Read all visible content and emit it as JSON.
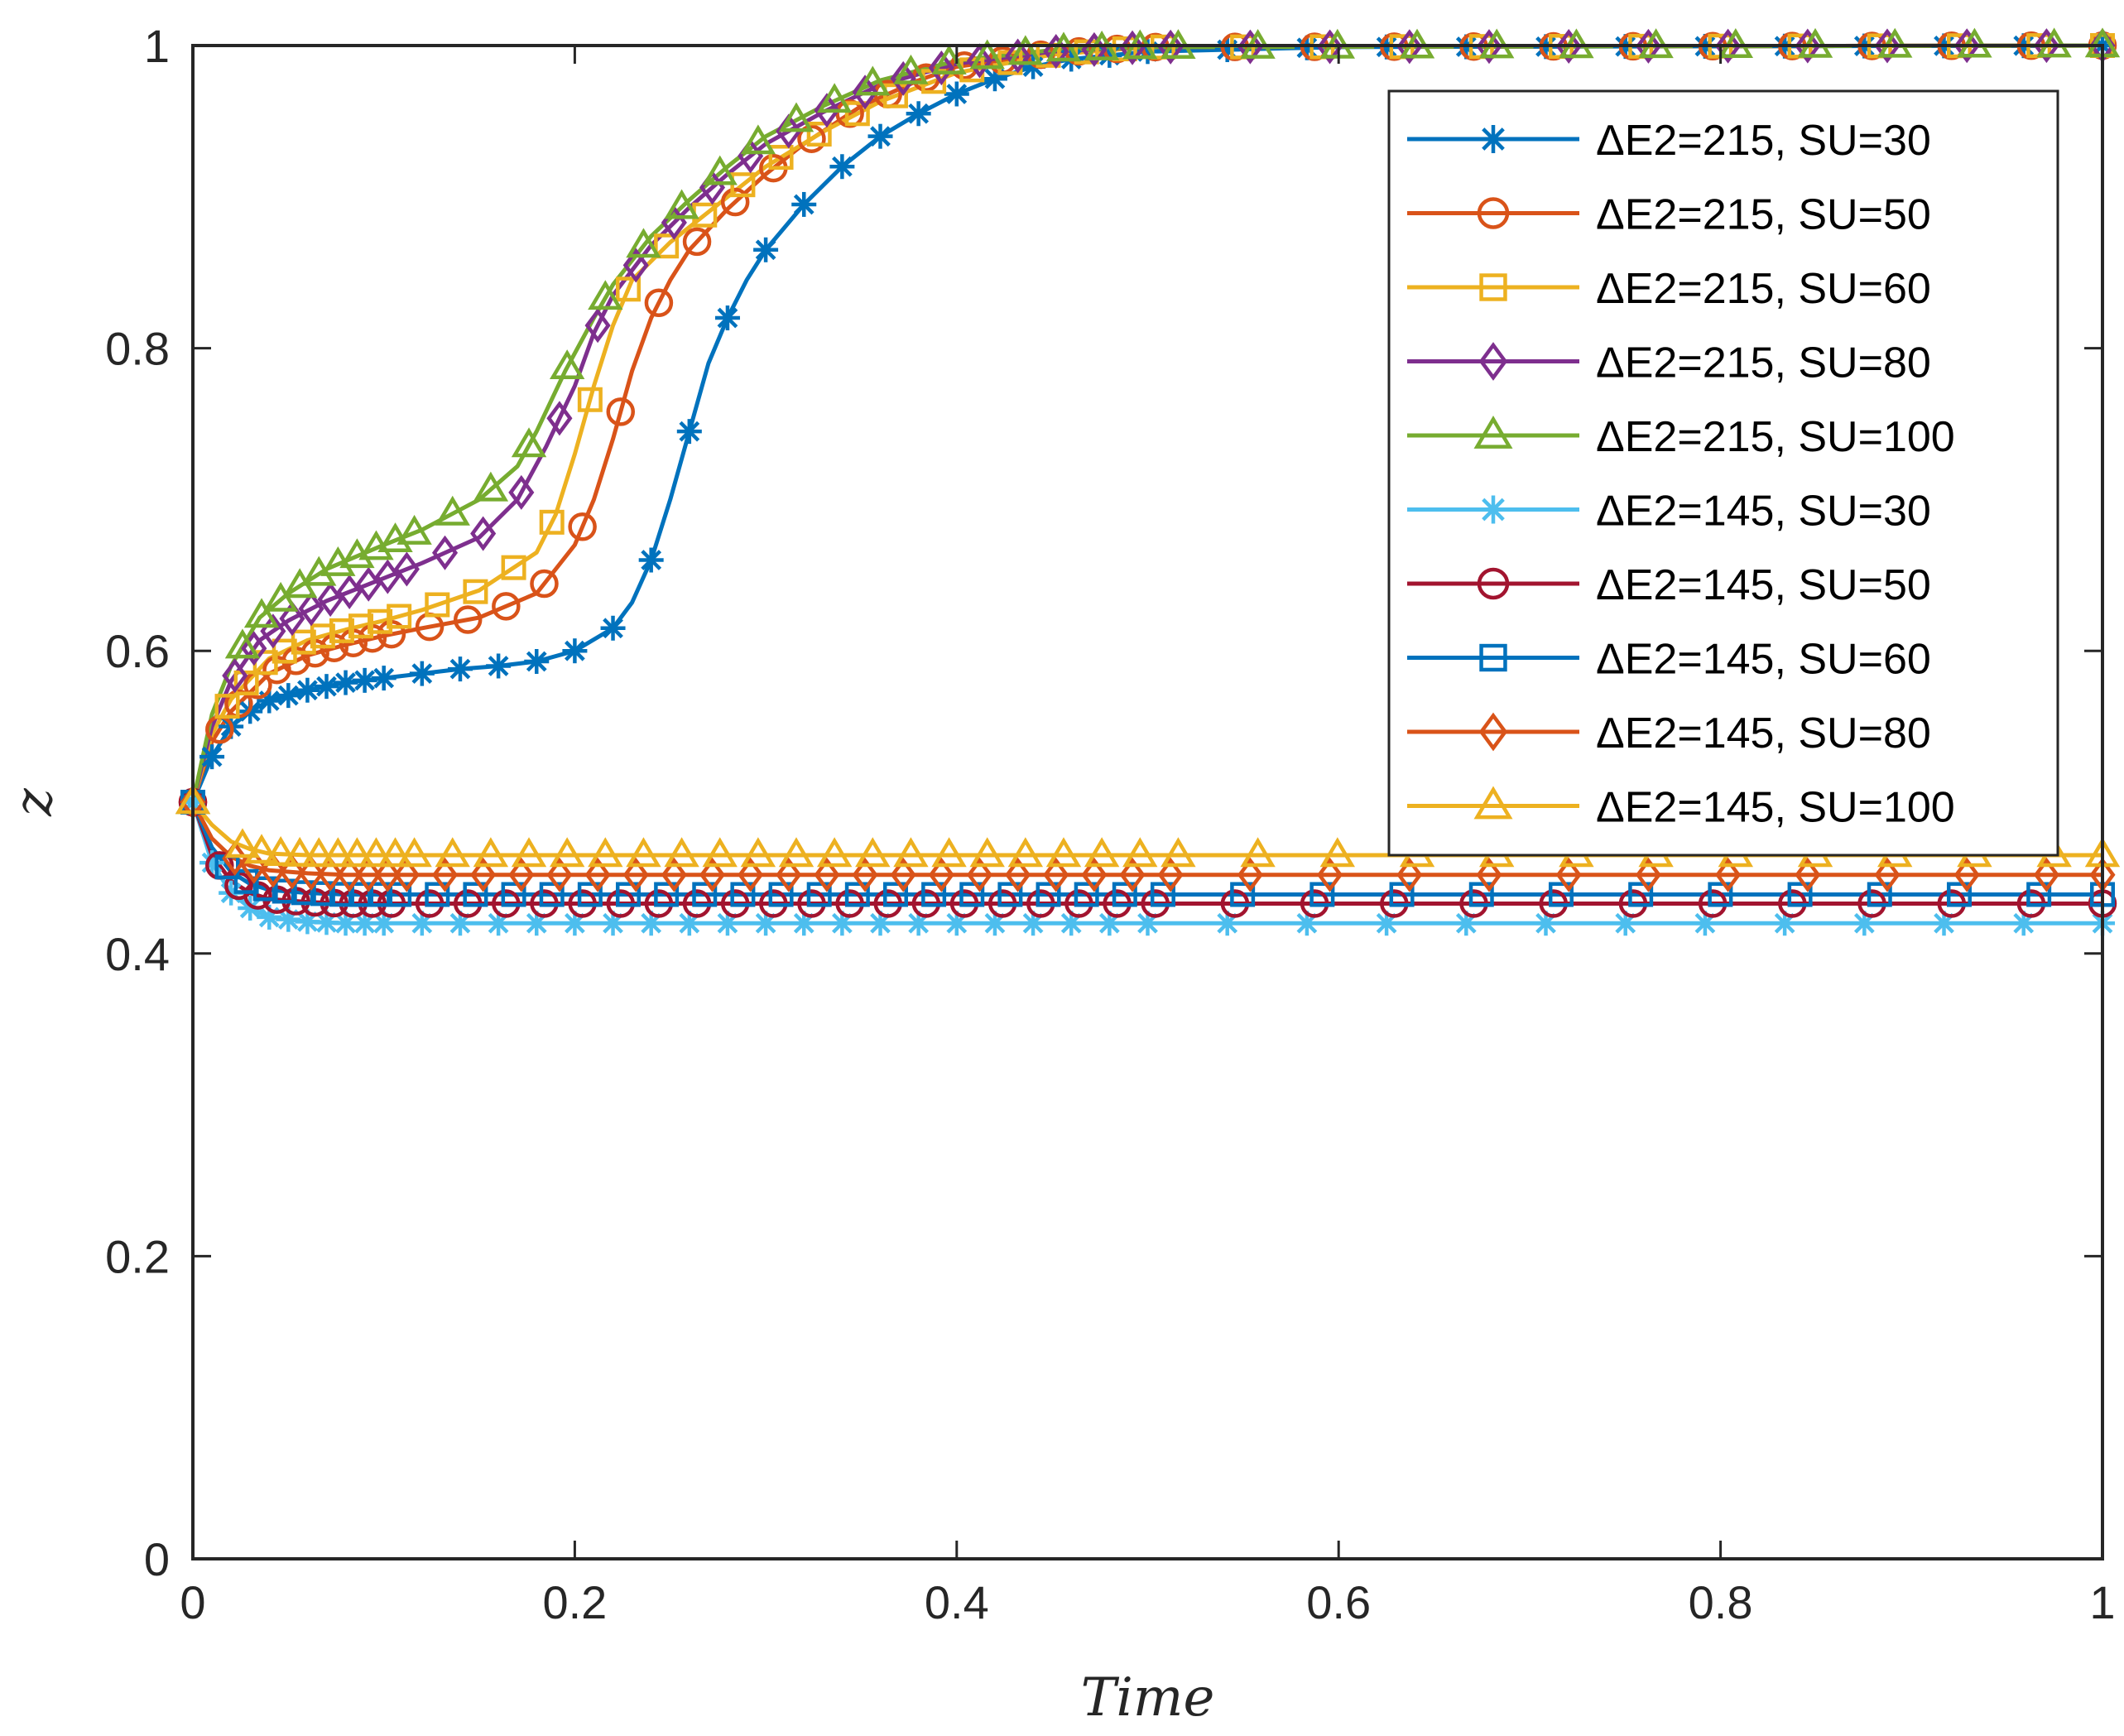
{
  "chart_data": {
    "type": "line",
    "title": "",
    "xlabel": "Time",
    "ylabel": "z",
    "xlim": [
      0,
      1
    ],
    "ylim": [
      0,
      1
    ],
    "xticks": [
      0,
      0.2,
      0.4,
      0.6,
      0.8,
      1
    ],
    "xtick_labels": [
      "0",
      "0.2",
      "0.4",
      "0.6",
      "0.8",
      "1"
    ],
    "yticks": [
      0,
      0.2,
      0.4,
      0.6,
      0.8,
      1
    ],
    "ytick_labels": [
      "0",
      "0.2",
      "0.4",
      "0.6",
      "0.8",
      "1"
    ],
    "grid": false,
    "legend_location": "top-right",
    "series": [
      {
        "name": "ΔE2=215, SU=30",
        "color": "#0072BD",
        "marker": "asterisk",
        "x": [
          0,
          0.01,
          0.02,
          0.03,
          0.04,
          0.06,
          0.08,
          0.1,
          0.12,
          0.14,
          0.16,
          0.18,
          0.2,
          0.22,
          0.23,
          0.24,
          0.25,
          0.26,
          0.27,
          0.28,
          0.29,
          0.3,
          0.32,
          0.34,
          0.36,
          0.38,
          0.4,
          0.42,
          0.44,
          0.46,
          0.5,
          0.6,
          1.0
        ],
        "y": [
          0.5,
          0.53,
          0.55,
          0.56,
          0.567,
          0.574,
          0.579,
          0.582,
          0.585,
          0.588,
          0.59,
          0.593,
          0.6,
          0.615,
          0.632,
          0.66,
          0.7,
          0.745,
          0.79,
          0.82,
          0.845,
          0.865,
          0.895,
          0.92,
          0.94,
          0.955,
          0.968,
          0.978,
          0.986,
          0.991,
          0.996,
          0.999,
          1.0
        ]
      },
      {
        "name": "ΔE2=215, SU=50",
        "color": "#D95319",
        "marker": "circle",
        "x": [
          0,
          0.01,
          0.02,
          0.04,
          0.06,
          0.08,
          0.1,
          0.12,
          0.15,
          0.18,
          0.2,
          0.21,
          0.22,
          0.23,
          0.24,
          0.25,
          0.26,
          0.28,
          0.3,
          0.32,
          0.35,
          0.38,
          0.4,
          0.45,
          0.5,
          1.0
        ],
        "y": [
          0.5,
          0.54,
          0.56,
          0.585,
          0.597,
          0.604,
          0.61,
          0.615,
          0.622,
          0.638,
          0.67,
          0.7,
          0.74,
          0.785,
          0.82,
          0.845,
          0.865,
          0.892,
          0.915,
          0.935,
          0.96,
          0.977,
          0.986,
          0.995,
          0.999,
          1.0
        ]
      },
      {
        "name": "ΔE2=215, SU=60",
        "color": "#EDB120",
        "marker": "square",
        "x": [
          0,
          0.01,
          0.02,
          0.04,
          0.06,
          0.08,
          0.1,
          0.12,
          0.15,
          0.18,
          0.19,
          0.2,
          0.21,
          0.22,
          0.23,
          0.25,
          0.27,
          0.3,
          0.33,
          0.36,
          0.4,
          0.45,
          0.5,
          1.0
        ],
        "y": [
          0.5,
          0.545,
          0.568,
          0.595,
          0.607,
          0.614,
          0.62,
          0.627,
          0.64,
          0.665,
          0.69,
          0.73,
          0.775,
          0.815,
          0.845,
          0.87,
          0.89,
          0.92,
          0.943,
          0.963,
          0.982,
          0.994,
          0.999,
          1.0
        ]
      },
      {
        "name": "ΔE2=215, SU=80",
        "color": "#7E2F8E",
        "marker": "diamond",
        "x": [
          0,
          0.01,
          0.02,
          0.035,
          0.05,
          0.07,
          0.1,
          0.12,
          0.15,
          0.17,
          0.185,
          0.2,
          0.21,
          0.22,
          0.24,
          0.26,
          0.28,
          0.3,
          0.33,
          0.36,
          0.4,
          0.45,
          0.5,
          1.0
        ],
        "y": [
          0.5,
          0.55,
          0.58,
          0.607,
          0.62,
          0.633,
          0.648,
          0.658,
          0.675,
          0.7,
          0.735,
          0.775,
          0.81,
          0.835,
          0.868,
          0.893,
          0.915,
          0.935,
          0.956,
          0.974,
          0.988,
          0.996,
          0.999,
          1.0
        ]
      },
      {
        "name": "ΔE2=215, SU=100",
        "color": "#77AC30",
        "marker": "triangle",
        "x": [
          0,
          0.01,
          0.02,
          0.035,
          0.05,
          0.07,
          0.1,
          0.12,
          0.15,
          0.17,
          0.18,
          0.195,
          0.21,
          0.22,
          0.24,
          0.26,
          0.28,
          0.3,
          0.33,
          0.36,
          0.4,
          0.45,
          0.5,
          1.0
        ],
        "y": [
          0.5,
          0.558,
          0.59,
          0.622,
          0.638,
          0.654,
          0.67,
          0.68,
          0.7,
          0.722,
          0.745,
          0.785,
          0.82,
          0.842,
          0.874,
          0.898,
          0.92,
          0.94,
          0.96,
          0.977,
          0.99,
          0.997,
          0.999,
          1.0
        ]
      },
      {
        "name": "ΔE2=145, SU=30",
        "color": "#4DBEEE",
        "marker": "asterisk",
        "x": [
          0,
          0.01,
          0.02,
          0.03,
          0.04,
          0.06,
          0.08,
          0.1,
          1.0
        ],
        "y": [
          0.5,
          0.46,
          0.44,
          0.43,
          0.424,
          0.421,
          0.42,
          0.42,
          0.42
        ]
      },
      {
        "name": "ΔE2=145, SU=50",
        "color": "#A2142F",
        "marker": "circle",
        "x": [
          0,
          0.01,
          0.02,
          0.03,
          0.04,
          0.06,
          0.08,
          0.1,
          1.0
        ],
        "y": [
          0.5,
          0.465,
          0.448,
          0.44,
          0.436,
          0.434,
          0.433,
          0.433,
          0.433
        ]
      },
      {
        "name": "ΔE2=145, SU=60",
        "color": "#0072BD",
        "marker": "square",
        "x": [
          0,
          0.01,
          0.02,
          0.03,
          0.04,
          0.06,
          0.08,
          0.1,
          1.0
        ],
        "y": [
          0.5,
          0.47,
          0.454,
          0.446,
          0.442,
          0.44,
          0.439,
          0.439,
          0.439
        ]
      },
      {
        "name": "ΔE2=145, SU=80",
        "color": "#D95319",
        "marker": "diamond",
        "x": [
          0,
          0.01,
          0.02,
          0.03,
          0.04,
          0.06,
          0.08,
          0.1,
          1.0
        ],
        "y": [
          0.5,
          0.476,
          0.464,
          0.458,
          0.455,
          0.453,
          0.452,
          0.452,
          0.452
        ]
      },
      {
        "name": "ΔE2=145, SU=100",
        "color": "#EDB120",
        "marker": "triangle",
        "x": [
          0,
          0.01,
          0.02,
          0.03,
          0.04,
          0.06,
          0.08,
          0.1,
          1.0
        ],
        "y": [
          0.5,
          0.485,
          0.474,
          0.469,
          0.466,
          0.465,
          0.465,
          0.465,
          0.465
        ]
      }
    ]
  }
}
